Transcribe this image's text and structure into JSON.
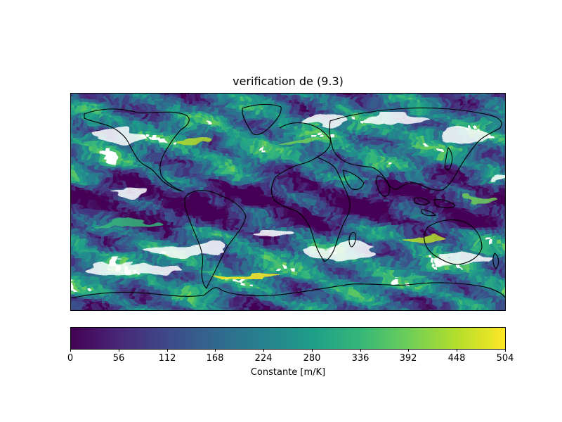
{
  "figure": {
    "title": "verification de (9.3)"
  },
  "map": {
    "projection": "PlateCarree",
    "extent": {
      "lon": [
        -180,
        180
      ],
      "lat": [
        -90,
        90
      ]
    },
    "field_description_colors": {
      "low": "#440154",
      "mid": "#21908d",
      "high": "#fde725",
      "masked": "#ffffff",
      "coastline": "#000000"
    }
  },
  "colorbar": {
    "label": "Constante [m/K]",
    "vmin": 0,
    "vmax": 504,
    "ticks": [
      "0",
      "56",
      "112",
      "168",
      "224",
      "280",
      "336",
      "392",
      "448",
      "504"
    ],
    "colormap": "viridis",
    "stops": [
      "#440154",
      "#482878",
      "#3e4989",
      "#31688e",
      "#26828e",
      "#1f9e89",
      "#35b779",
      "#6ece58",
      "#b5de2b",
      "#fde725"
    ]
  }
}
